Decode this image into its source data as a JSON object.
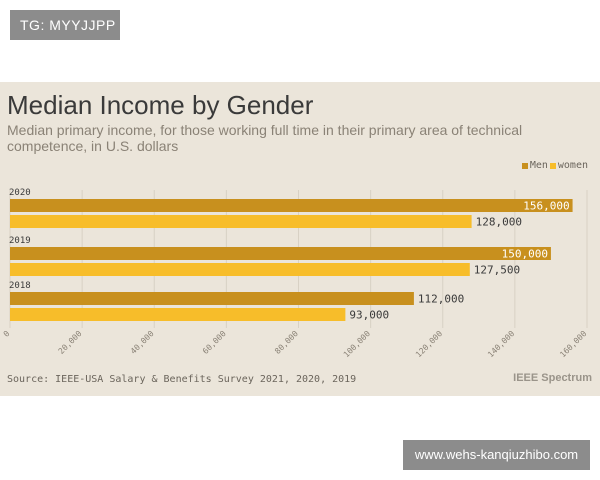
{
  "watermark_top": "TG: MYYJJPP",
  "watermark_bottom": "www.wehs-kanqiuzhibo.com",
  "brand": "IEEE Spectrum",
  "colors": {
    "men": "#c8901e",
    "women": "#f7bd2a",
    "background": "#ebe5da"
  },
  "chart_data": {
    "type": "bar",
    "orientation": "horizontal",
    "title": "Median Income by Gender",
    "subtitle": "Median primary income, for those working full time in their primary area of technical competence, in U.S. dollars",
    "categories": [
      "2020",
      "2019",
      "2018"
    ],
    "series": [
      {
        "name": "Men",
        "values": [
          156000,
          150000,
          112000
        ],
        "labels": [
          "156,000",
          "150,000",
          "112,000"
        ]
      },
      {
        "name": "women",
        "values": [
          128000,
          127500,
          93000
        ],
        "labels": [
          "128,000",
          "127,500",
          "93,000"
        ]
      }
    ],
    "xlim": [
      0,
      160000
    ],
    "xticks": [
      0,
      20000,
      40000,
      60000,
      80000,
      100000,
      120000,
      140000,
      160000
    ],
    "xtick_labels": [
      "0",
      "20,000",
      "40,000",
      "60,000",
      "80,000",
      "100,000",
      "120,000",
      "140,000",
      "160,000"
    ],
    "grid": true,
    "legend": "top-right",
    "source": "Source: IEEE-USA Salary & Benefits Survey 2021, 2020, 2019"
  }
}
